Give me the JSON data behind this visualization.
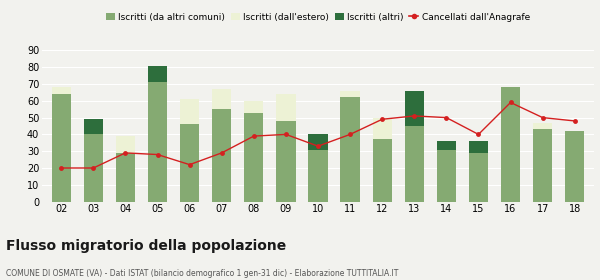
{
  "years": [
    "02",
    "03",
    "04",
    "05",
    "06",
    "07",
    "08",
    "09",
    "10",
    "11",
    "12",
    "13",
    "14",
    "15",
    "16",
    "17",
    "18"
  ],
  "iscritti_comuni": [
    64,
    40,
    29,
    71,
    46,
    55,
    53,
    48,
    31,
    62,
    37,
    45,
    31,
    29,
    68,
    43,
    42
  ],
  "iscritti_estero": [
    4,
    0,
    10,
    0,
    15,
    12,
    7,
    16,
    0,
    4,
    13,
    0,
    0,
    0,
    0,
    4,
    0
  ],
  "iscritti_altri": [
    0,
    9,
    0,
    10,
    0,
    0,
    0,
    0,
    9,
    0,
    0,
    21,
    5,
    7,
    0,
    0,
    0
  ],
  "cancellati": [
    20,
    20,
    29,
    28,
    22,
    29,
    39,
    40,
    33,
    40,
    49,
    51,
    50,
    40,
    59,
    50,
    48
  ],
  "ylim": [
    0,
    90
  ],
  "yticks": [
    0,
    10,
    20,
    30,
    40,
    50,
    60,
    70,
    80,
    90
  ],
  "color_comuni": "#85aa72",
  "color_estero": "#edf2d5",
  "color_altri": "#2d6e3c",
  "color_cancellati": "#d42020",
  "bg_color": "#f2f2ee",
  "grid_color": "#ffffff",
  "title": "Flusso migratorio della popolazione",
  "subtitle": "COMUNE DI OSMATE (VA) - Dati ISTAT (bilancio demografico 1 gen-31 dic) - Elaborazione TUTTITALIA.IT",
  "legend_labels": [
    "Iscritti (da altri comuni)",
    "Iscritti (dall'estero)",
    "Iscritti (altri)",
    "Cancellati dall'Anagrafe"
  ],
  "bar_width": 0.6,
  "title_fontsize": 10,
  "subtitle_fontsize": 5.5,
  "tick_fontsize": 7,
  "legend_fontsize": 6.5
}
